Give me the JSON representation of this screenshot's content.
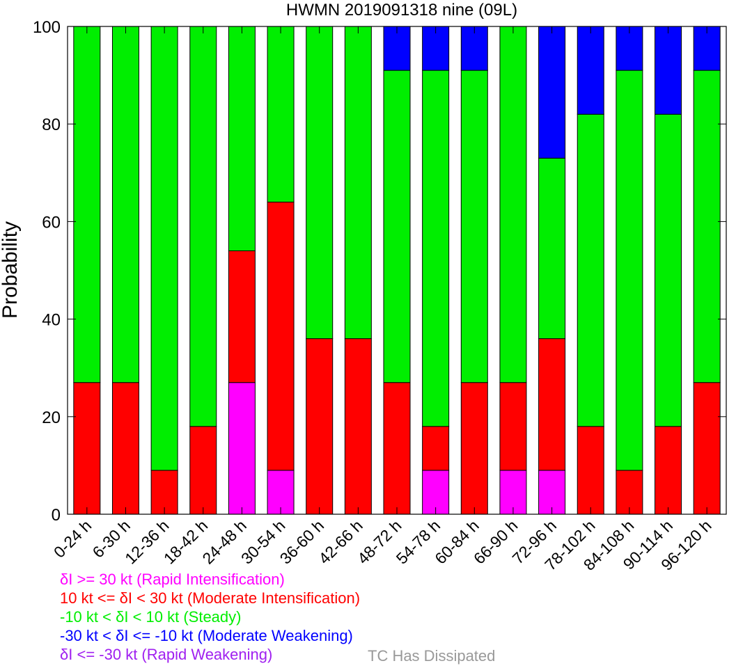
{
  "chart_data": {
    "type": "bar",
    "stacked": true,
    "title": "HWMN 2019091318 nine (09L)",
    "xlabel": "",
    "ylabel": "Probability",
    "ylim": [
      0,
      100
    ],
    "yticks": [
      0,
      20,
      40,
      60,
      80,
      100
    ],
    "grid": false,
    "categories": [
      "0-24 h",
      "6-30 h",
      "12-36 h",
      "18-42 h",
      "24-48 h",
      "30-54 h",
      "36-60 h",
      "42-66 h",
      "48-72 h",
      "54-78 h",
      "60-84 h",
      "66-90 h",
      "72-96 h",
      "78-102 h",
      "84-108 h",
      "90-114 h",
      "96-120 h"
    ],
    "series": [
      {
        "key": "rw",
        "name": "δI <= -30 kt (Rapid Weakening)",
        "color": "#a020f0",
        "values": [
          0,
          0,
          0,
          0,
          0,
          0,
          0,
          0,
          0,
          0,
          0,
          0,
          0,
          0,
          0,
          0,
          0
        ]
      },
      {
        "key": "ri",
        "name": "δI >= 30 kt (Rapid Intensification)",
        "color": "#ff00ff",
        "values": [
          0,
          0,
          0,
          0,
          27,
          9,
          0,
          0,
          0,
          9,
          0,
          9,
          9,
          0,
          0,
          0,
          0
        ]
      },
      {
        "key": "mi",
        "name": "10 kt <= δI < 30 kt (Moderate Intensification)",
        "color": "#ff0000",
        "values": [
          27,
          27,
          9,
          18,
          27,
          55,
          36,
          36,
          27,
          9,
          27,
          18,
          27,
          18,
          9,
          18,
          27
        ]
      },
      {
        "key": "st",
        "name": "-10 kt < δI < 10 kt (Steady)",
        "color": "#00ee00",
        "values": [
          73,
          73,
          91,
          82,
          46,
          36,
          64,
          64,
          64,
          73,
          64,
          73,
          37,
          64,
          82,
          64,
          64
        ]
      },
      {
        "key": "mw",
        "name": "-30 kt < δI <= -10 kt (Moderate Weakening)",
        "color": "#0000ff",
        "values": [
          0,
          0,
          0,
          0,
          0,
          0,
          0,
          0,
          9,
          9,
          9,
          0,
          27,
          18,
          9,
          18,
          9
        ]
      }
    ],
    "legend_order": [
      "ri",
      "mi",
      "st",
      "mw",
      "rw"
    ],
    "legend_placement": "bottom-left",
    "dissipated_label": "TC Has Dissipated",
    "dissipated_color": "#999999"
  }
}
